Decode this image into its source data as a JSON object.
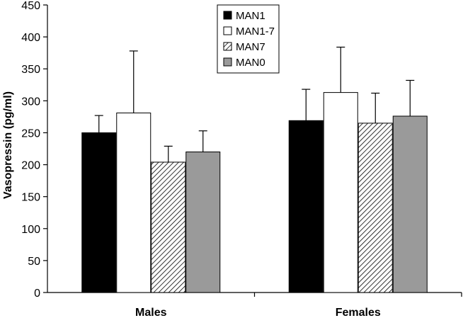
{
  "chart_data": {
    "type": "bar",
    "title": "",
    "xlabel": "",
    "ylabel": "Vasopressin (pg/ml)",
    "ylim": [
      0,
      450
    ],
    "yticks": [
      0,
      50,
      100,
      150,
      200,
      250,
      300,
      350,
      400,
      450
    ],
    "categories": [
      "Males",
      "Females"
    ],
    "series": [
      {
        "name": "MAN1",
        "values": [
          250,
          269
        ],
        "errors": [
          27,
          49
        ],
        "fill": "#000000",
        "pattern": "solid"
      },
      {
        "name": "MAN1-7",
        "values": [
          281,
          313
        ],
        "errors": [
          97,
          71
        ],
        "fill": "#ffffff",
        "pattern": "solid"
      },
      {
        "name": "MAN7",
        "values": [
          204,
          265
        ],
        "errors": [
          25,
          47
        ],
        "fill": "#ffffff",
        "pattern": "hatch"
      },
      {
        "name": "MAN0",
        "values": [
          220,
          276
        ],
        "errors": [
          33,
          56
        ],
        "fill": "#9a9a9a",
        "pattern": "solid"
      }
    ],
    "legend_position": "top-center",
    "grid": false
  }
}
